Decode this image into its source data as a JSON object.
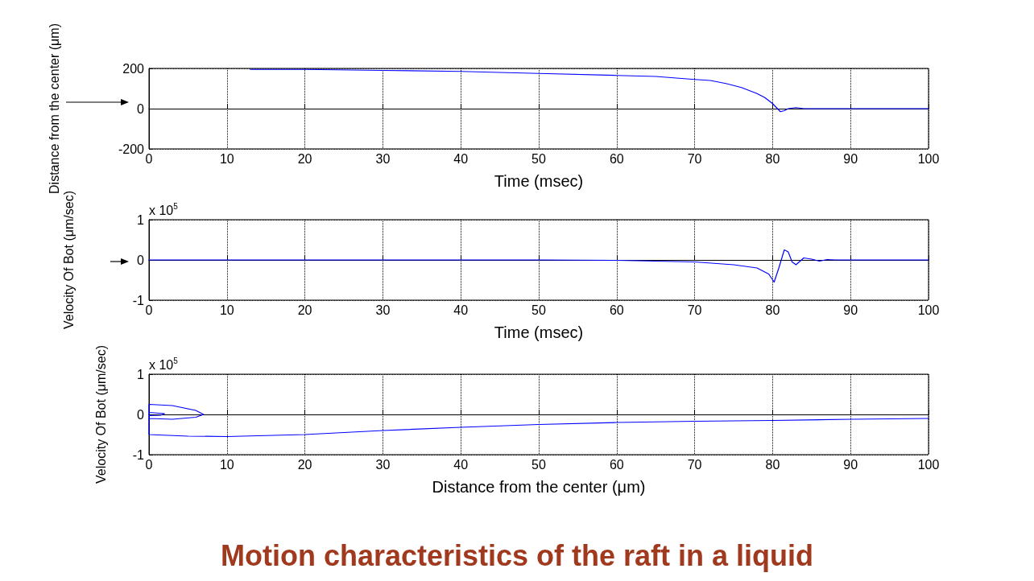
{
  "chart_data": [
    {
      "type": "line",
      "ylabel": "Distance from the center (μm)",
      "xlabel": "Time (msec)",
      "xlim": [
        0,
        100
      ],
      "xticks": [
        0,
        10,
        20,
        30,
        40,
        50,
        60,
        70,
        80,
        90,
        100
      ],
      "ylim": [
        -200,
        200
      ],
      "yticks": [
        -200,
        0,
        200
      ],
      "grid": true,
      "marker": "none",
      "line_style": "solid",
      "series": [
        {
          "color": "#0000ff",
          "x": [
            13,
            20,
            30,
            40,
            50,
            60,
            65,
            70,
            72,
            74,
            76,
            78,
            79,
            80,
            80.5,
            81,
            81.5,
            82,
            83,
            84,
            90,
            100
          ],
          "values": [
            195,
            195,
            190,
            185,
            175,
            165,
            160,
            145,
            140,
            125,
            105,
            75,
            55,
            25,
            5,
            -15,
            -10,
            0,
            5,
            0,
            0,
            0
          ]
        }
      ]
    },
    {
      "type": "line",
      "ylabel": "Velocity Of Bot (μm/sec)",
      "xlabel": "Time (msec)",
      "annotations": [
        "x 10$^{5}$"
      ],
      "xlim": [
        0,
        100
      ],
      "xticks": [
        0,
        10,
        20,
        30,
        40,
        50,
        60,
        70,
        80,
        90,
        100
      ],
      "ylim": [
        -1,
        1
      ],
      "yticks": [
        -1,
        0,
        1
      ],
      "grid": true,
      "marker": "none",
      "line_style": "solid",
      "series": [
        {
          "color": "#0000ff",
          "x": [
            0,
            50,
            60,
            70,
            75,
            78,
            79.5,
            80.2,
            80.8,
            81.5,
            82,
            82.5,
            83,
            84,
            85,
            86,
            87,
            88,
            100
          ],
          "values": [
            0,
            0,
            -0.01,
            -0.05,
            -0.12,
            -0.2,
            -0.35,
            -0.55,
            -0.2,
            0.25,
            0.2,
            -0.05,
            -0.12,
            0.05,
            0.02,
            -0.03,
            0.01,
            0,
            0
          ]
        }
      ]
    },
    {
      "type": "line",
      "title": "Motion characteristics of the raft in a liquid",
      "ylabel": "Velocity Of Bot (μm/sec)",
      "xlabel": "Distance from the center (μm)",
      "annotations": [
        "x 10$^{5}$"
      ],
      "xlim": [
        0,
        100
      ],
      "xticks": [
        0,
        10,
        20,
        30,
        40,
        50,
        60,
        70,
        80,
        90,
        100
      ],
      "ylim": [
        -1,
        1
      ],
      "yticks": [
        -1,
        0,
        1
      ],
      "grid": true,
      "marker": "none",
      "line_style": "solid",
      "series": [
        {
          "color": "#0000ff",
          "x": [
            100,
            90,
            80,
            70,
            60,
            50,
            40,
            30,
            20,
            10,
            5,
            0,
            0,
            3,
            6,
            7,
            6,
            3,
            0,
            0,
            2,
            1.5,
            0
          ],
          "values": [
            -0.1,
            -0.12,
            -0.15,
            -0.17,
            -0.2,
            -0.25,
            -0.32,
            -0.4,
            -0.5,
            -0.55,
            -0.54,
            -0.5,
            0.25,
            0.22,
            0.1,
            0,
            -0.07,
            -0.12,
            -0.1,
            0.05,
            0.02,
            -0.02,
            -0.03
          ]
        }
      ]
    }
  ]
}
